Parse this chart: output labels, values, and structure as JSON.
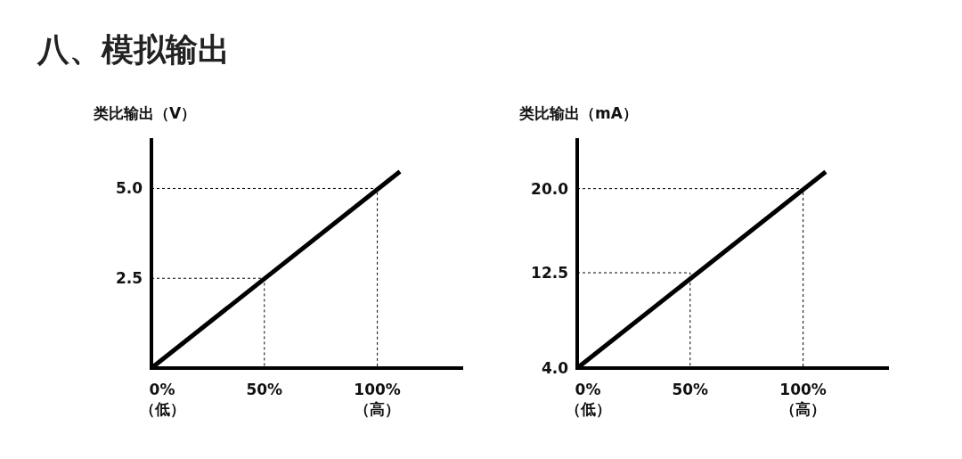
{
  "chart_data": [
    {
      "type": "line",
      "title": "八、模拟输出",
      "ylabel": "类比输出（V）",
      "xlim": [
        0,
        138
      ],
      "ylim": [
        0,
        6.4
      ],
      "xticks": [
        {
          "value": 0,
          "label": "0%\n（低）"
        },
        {
          "value": 50,
          "label": "50%"
        },
        {
          "value": 100,
          "label": "100%\n（高）"
        }
      ],
      "yticks": [
        {
          "value": 2.5,
          "label": "2.5"
        },
        {
          "value": 5,
          "label": "5.0"
        }
      ],
      "grid": false,
      "marker": "none",
      "series": [
        {
          "color": "#000000",
          "line_style": "solid",
          "x": [
            0,
            110
          ],
          "values": [
            0,
            5.47
          ]
        },
        {
          "color": "#000000",
          "line_style": "dashed",
          "x": [
            0,
            50,
            50
          ],
          "values": [
            2.5,
            2.5,
            0
          ]
        },
        {
          "color": "#000000",
          "line_style": "dashed",
          "x": [
            0,
            100,
            100
          ],
          "values": [
            5,
            5,
            0
          ]
        }
      ]
    },
    {
      "type": "line",
      "ylabel": "类比输出（mA）",
      "xlim": [
        0,
        138
      ],
      "ylim": [
        4,
        24.5
      ],
      "xticks": [
        {
          "value": 0,
          "label": "0%\n（低）"
        },
        {
          "value": 50,
          "label": "50%"
        },
        {
          "value": 100,
          "label": "100%\n（高）"
        }
      ],
      "yticks": [
        {
          "value": 4,
          "label": "4.0"
        },
        {
          "value": 12.5,
          "label": "12.5"
        },
        {
          "value": 20,
          "label": "20.0"
        }
      ],
      "grid": false,
      "marker": "none",
      "series": [
        {
          "color": "#000000",
          "line_style": "solid",
          "x": [
            0,
            110
          ],
          "values": [
            4,
            21.5
          ]
        },
        {
          "color": "#000000",
          "line_style": "dashed",
          "x": [
            0,
            50,
            50
          ],
          "values": [
            12.5,
            12.5,
            4
          ]
        },
        {
          "color": "#000000",
          "line_style": "dashed",
          "x": [
            0,
            100,
            100
          ],
          "values": [
            20,
            20,
            4
          ]
        }
      ]
    }
  ]
}
